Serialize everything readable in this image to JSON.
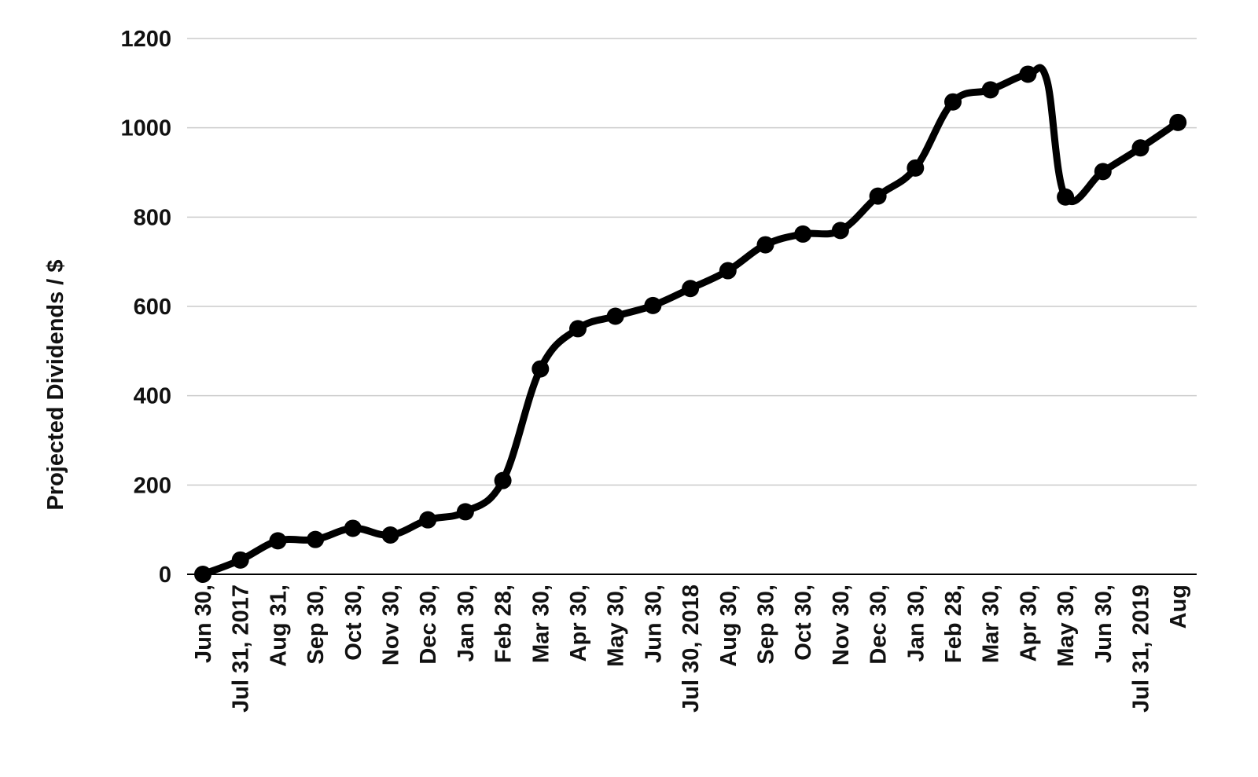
{
  "chart_data": {
    "type": "line",
    "title": "",
    "xlabel": "",
    "ylabel": "Projected Dividends / $",
    "ylim": [
      0,
      1200
    ],
    "yticks": [
      0,
      200,
      400,
      600,
      800,
      1000,
      1200
    ],
    "grid": true,
    "legend": "none",
    "line_color": "#000000",
    "grid_color": "#cccccc",
    "categories": [
      "Jun 30,",
      "Jul 31, 2017",
      "Aug 31,",
      "Sep 30,",
      "Oct 30,",
      "Nov 30,",
      "Dec 30,",
      "Jan 30,",
      "Feb 28,",
      "Mar 30,",
      "Apr 30,",
      "May 30,",
      "Jun 30,",
      "Jul 30, 2018",
      "Aug 30,",
      "Sep 30,",
      "Oct 30,",
      "Nov 30,",
      "Dec 30,",
      "Jan 30,",
      "Feb 28,",
      "Mar 30,",
      "Apr 30,",
      "May 30,",
      "Jun 30,",
      "Jul 31, 2019",
      "Aug"
    ],
    "series": [
      {
        "x": [
          0,
          1,
          2,
          3,
          4,
          5,
          6,
          7,
          8,
          9,
          10,
          11,
          12,
          13,
          14,
          15,
          16,
          17,
          18,
          19,
          20,
          21,
          22,
          22.5,
          23,
          24,
          25,
          26
        ],
        "values": [
          0,
          32,
          75,
          78,
          103,
          88,
          122,
          140,
          210,
          460,
          550,
          578,
          602,
          640,
          680,
          738,
          762,
          770,
          847,
          910,
          1058,
          1085,
          1120,
          1108,
          845,
          902,
          955,
          1012
        ]
      }
    ]
  }
}
